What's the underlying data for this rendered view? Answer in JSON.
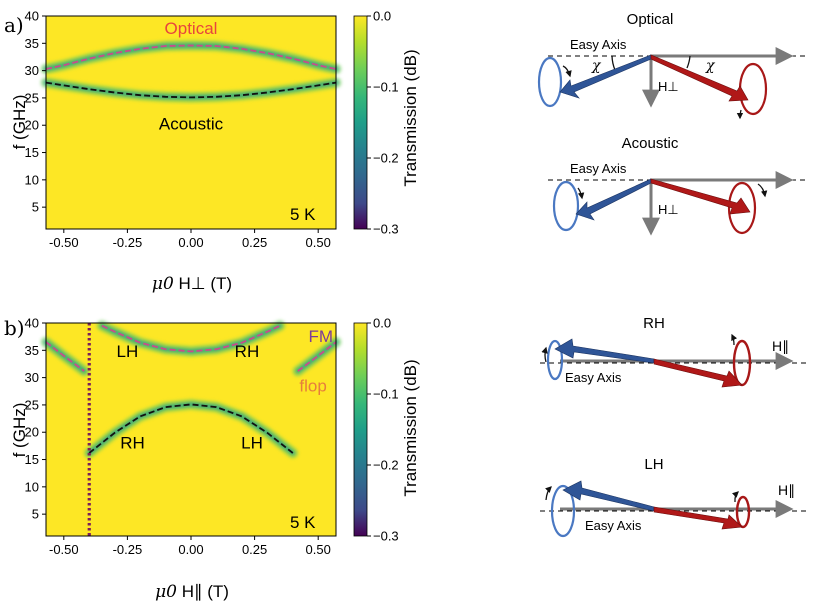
{
  "chart_data": [
    {
      "panel": "a)",
      "type": "heatmap",
      "xlabel_symbol": "μ0",
      "xlabel_field": "H⊥",
      "xlabel_unit": "(T)",
      "ylabel": "f (GHz)",
      "xlim": [
        -0.57,
        0.57
      ],
      "ylim": [
        1,
        40
      ],
      "xticks": [
        "-0.50",
        "-0.25",
        "0.00",
        "0.25",
        "0.50"
      ],
      "xtick_values": [
        -0.5,
        -0.25,
        0.0,
        0.25,
        0.5
      ],
      "yticks": [
        "5",
        "10",
        "15",
        "20",
        "25",
        "30",
        "35",
        "40"
      ],
      "ytick_values": [
        5,
        10,
        15,
        20,
        25,
        30,
        35,
        40
      ],
      "temperature_label": "5 K",
      "labels": [
        {
          "text": "Optical",
          "x": 0.0,
          "y": 37.8,
          "color": "#e8453c"
        },
        {
          "text": "Acoustic",
          "x": 0.0,
          "y": 20.3,
          "color": "#000000"
        }
      ],
      "series": [
        {
          "name": "Optical mode",
          "style": "dashed",
          "color": "#c94b8c",
          "x": [
            -0.57,
            -0.5,
            -0.4,
            -0.3,
            -0.2,
            -0.1,
            0.0,
            0.1,
            0.2,
            0.3,
            0.4,
            0.5,
            0.57
          ],
          "y": [
            30.3,
            31.0,
            32.2,
            33.2,
            34.0,
            34.5,
            34.6,
            34.5,
            34.0,
            33.2,
            32.2,
            31.0,
            30.3
          ]
        },
        {
          "name": "Acoustic mode",
          "style": "dashed",
          "color": "#111111",
          "x": [
            -0.57,
            -0.5,
            -0.4,
            -0.3,
            -0.2,
            -0.1,
            0.0,
            0.1,
            0.2,
            0.3,
            0.4,
            0.5,
            0.57
          ],
          "y": [
            27.8,
            27.3,
            26.6,
            26.0,
            25.5,
            25.2,
            25.1,
            25.2,
            25.5,
            26.0,
            26.6,
            27.3,
            27.8
          ]
        }
      ]
    },
    {
      "panel": "b)",
      "type": "heatmap",
      "xlabel_symbol": "μ0",
      "xlabel_field": "H∥",
      "xlabel_unit": "(T)",
      "ylabel": "f (GHz)",
      "xlim": [
        -0.57,
        0.57
      ],
      "ylim": [
        1,
        40
      ],
      "xticks": [
        "-0.50",
        "-0.25",
        "0.00",
        "0.25",
        "0.50"
      ],
      "xtick_values": [
        -0.5,
        -0.25,
        0.0,
        0.25,
        0.5
      ],
      "yticks": [
        "5",
        "10",
        "15",
        "20",
        "25",
        "30",
        "35",
        "40"
      ],
      "ytick_values": [
        5,
        10,
        15,
        20,
        25,
        30,
        35,
        40
      ],
      "temperature_label": "5 K",
      "vertical_marker_x": -0.4,
      "labels": [
        {
          "text": "LH",
          "x": -0.25,
          "y": 34.9,
          "color": "#000000"
        },
        {
          "text": "RH",
          "x": 0.22,
          "y": 34.9,
          "color": "#000000"
        },
        {
          "text": "RH",
          "x": -0.23,
          "y": 18.1,
          "color": "#000000"
        },
        {
          "text": "LH",
          "x": 0.24,
          "y": 18.1,
          "color": "#000000"
        },
        {
          "text": "FM",
          "x": 0.51,
          "y": 37.6,
          "color": "#7d3c98"
        },
        {
          "text": "flop",
          "x": 0.48,
          "y": 28.6,
          "color": "#e67e3c"
        }
      ],
      "series": [
        {
          "name": "Upper mode",
          "style": "dashed",
          "color": "#c94b8c",
          "x": [
            -0.35,
            -0.3,
            -0.2,
            -0.1,
            0.0,
            0.1,
            0.2,
            0.3,
            0.35
          ],
          "y": [
            39.5,
            38.4,
            36.4,
            35.2,
            34.8,
            35.2,
            36.4,
            38.4,
            39.5
          ]
        },
        {
          "name": "Lower mode",
          "style": "dashed",
          "color": "#111111",
          "x": [
            -0.4,
            -0.3,
            -0.2,
            -0.1,
            0.0,
            0.1,
            0.2,
            0.3,
            0.4
          ],
          "y": [
            16.2,
            19.9,
            22.9,
            24.6,
            25.1,
            24.6,
            22.9,
            19.9,
            16.2
          ]
        },
        {
          "name": "FM mode (left)",
          "style": "dashed",
          "color": "#c94b8c",
          "x": [
            -0.57,
            -0.5,
            -0.42
          ],
          "y": [
            36.5,
            34.0,
            31.2
          ]
        },
        {
          "name": "FM mode (right)",
          "style": "dashed",
          "color": "#c94b8c",
          "x": [
            0.42,
            0.5,
            0.57
          ],
          "y": [
            31.2,
            34.0,
            36.5
          ]
        }
      ]
    },
    {
      "type": "colorbar",
      "label": "Transmission (dB)",
      "ticks": [
        "0.0",
        "−0.1",
        "−0.2",
        "−0.3"
      ],
      "tick_values": [
        0.0,
        -0.1,
        -0.2,
        -0.3
      ],
      "range": [
        -0.3,
        0.0
      ]
    }
  ],
  "diagrams": {
    "optical": {
      "title": "Optical",
      "easy_axis": "Easy Axis",
      "angle_symbol": "χ",
      "field_label": "H⊥"
    },
    "acoustic": {
      "title": "Acoustic",
      "easy_axis": "Easy Axis",
      "field_label": "H⊥"
    },
    "rh": {
      "title": "RH",
      "easy_axis": "Easy Axis",
      "field_label": "H∥"
    },
    "lh": {
      "title": "LH",
      "easy_axis": "Easy Axis",
      "field_label": "H∥"
    }
  },
  "colors": {
    "background": "#fde725",
    "colormap": [
      "#440154",
      "#482878",
      "#3e4989",
      "#31688e",
      "#26828e",
      "#1f9e89",
      "#35b779",
      "#6ece58",
      "#b5de2b",
      "#fde725"
    ],
    "blue_vector": "#2f5597",
    "red_vector": "#b01818",
    "gray_vector": "#7a7a7a"
  }
}
